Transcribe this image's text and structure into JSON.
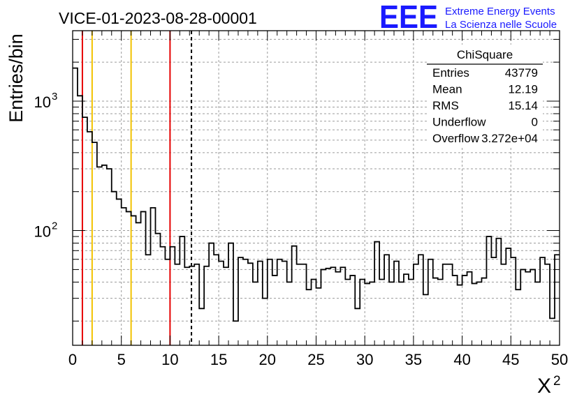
{
  "chart_data": {
    "type": "bar",
    "title": "VICE-01-2023-08-28-00001",
    "xlabel": "X",
    "xlabel_superscript": "2",
    "ylabel": "Entries/bin",
    "xlim": [
      0,
      50
    ],
    "ylim": [
      13,
      3500
    ],
    "y_scale": "log",
    "grid": true,
    "bin_width": 0.5,
    "x_ticks": [
      0,
      5,
      10,
      15,
      20,
      25,
      30,
      35,
      40,
      45,
      50
    ],
    "y_ticks": [
      {
        "value": 100,
        "base": "10",
        "exp": "2"
      },
      {
        "value": 1000,
        "base": "10",
        "exp": "3"
      }
    ],
    "values": [
      1800,
      1100,
      750,
      580,
      480,
      310,
      320,
      300,
      200,
      175,
      150,
      140,
      130,
      115,
      140,
      65,
      150,
      95,
      75,
      60,
      75,
      55,
      90,
      52,
      53,
      55,
      25,
      53,
      80,
      65,
      58,
      52,
      80,
      20,
      62,
      60,
      56,
      40,
      58,
      30,
      60,
      45,
      60,
      58,
      40,
      76,
      55,
      55,
      35,
      42,
      36,
      50,
      51,
      52,
      48,
      52,
      42,
      45,
      25,
      42,
      39,
      40,
      82,
      42,
      65,
      40,
      58,
      40,
      46,
      42,
      55,
      65,
      32,
      60,
      43,
      42,
      55,
      55,
      45,
      38,
      45,
      48,
      39,
      40,
      43,
      90,
      62,
      87,
      55,
      73,
      62,
      35,
      50,
      48,
      50,
      40,
      62,
      55,
      21,
      65
    ],
    "vertical_lines": [
      {
        "x": 1,
        "color": "#e60000",
        "style": "solid"
      },
      {
        "x": 2,
        "color": "#f2c200",
        "style": "solid"
      },
      {
        "x": 6,
        "color": "#f2c200",
        "style": "solid"
      },
      {
        "x": 10,
        "color": "#e60000",
        "style": "solid"
      },
      {
        "x": 12.2,
        "color": "#000000",
        "style": "dashed"
      }
    ],
    "stats_box": {
      "title": "ChiSquare",
      "rows": [
        {
          "label": "Entries",
          "value": "43779"
        },
        {
          "label": "Mean",
          "value": "12.19"
        },
        {
          "label": "RMS",
          "value": "15.14"
        },
        {
          "label": "Underflow",
          "value": "0"
        },
        {
          "label": "Overflow",
          "value": "3.272e+04"
        }
      ]
    }
  },
  "logo": {
    "text": "EEE",
    "line1": "Extreme Energy Events",
    "line2": "La Scienza nelle Scuole",
    "color": "#1a1aff"
  }
}
